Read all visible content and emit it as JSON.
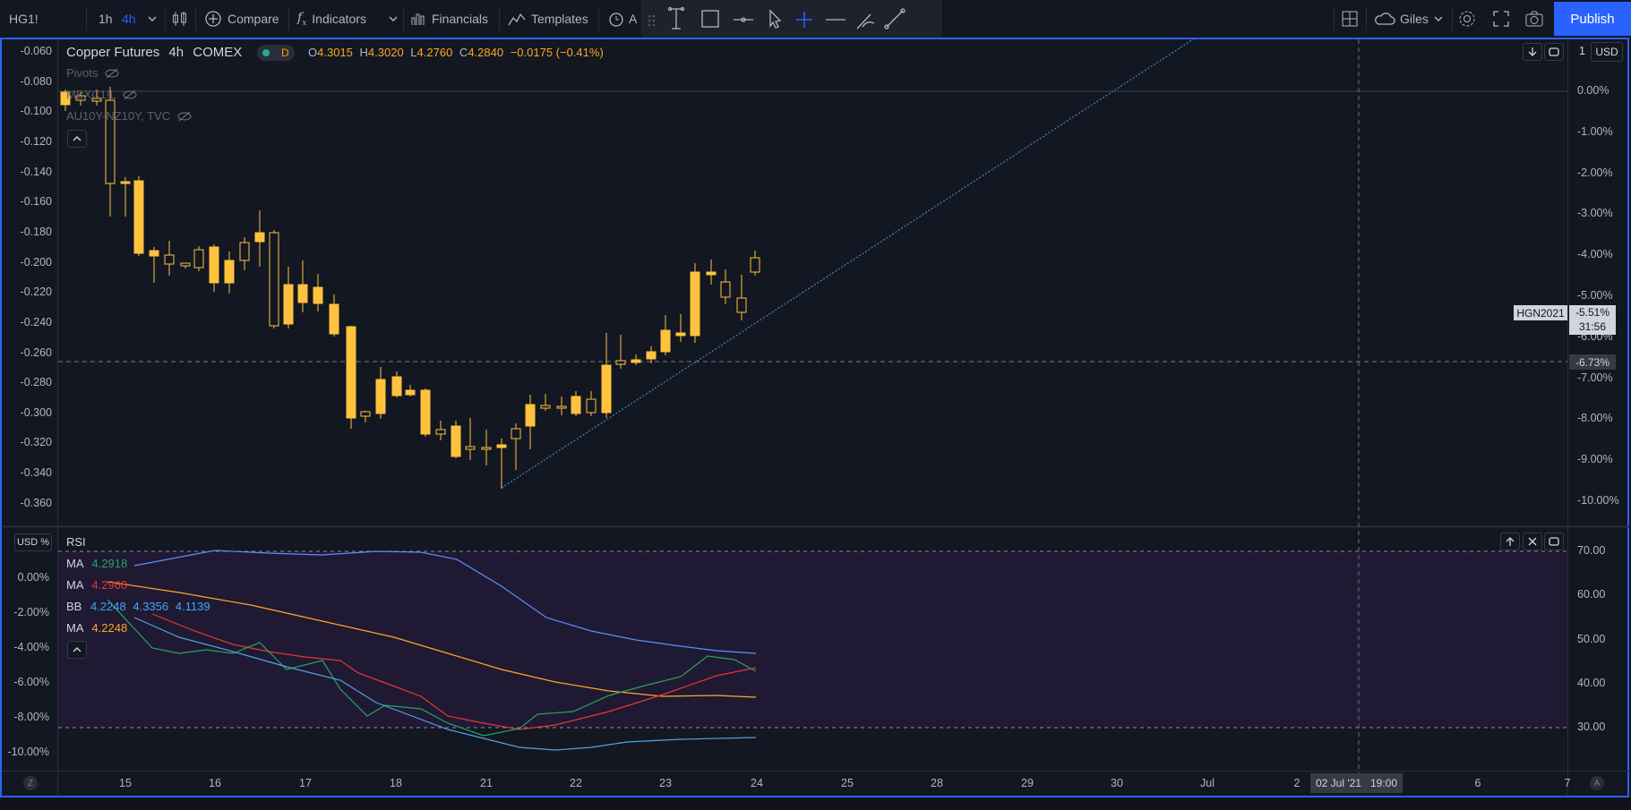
{
  "toolbar": {
    "symbol": "HG1!",
    "interval_1h": "1h",
    "interval_4h": "4h",
    "compare": "Compare",
    "indicators": "Indicators",
    "financials": "Financials",
    "templates": "Templates",
    "alert_partial": "A",
    "user": "Giles",
    "publish": "Publish",
    "accent_color": "#2962ff"
  },
  "legend": {
    "name": "Copper Futures",
    "interval": "4h",
    "exchange": "COMEX",
    "badge": "D",
    "open_label": "O",
    "open": "4.3015",
    "high_label": "H",
    "high": "4.3020",
    "low_label": "L",
    "low": "4.2760",
    "close_label": "C",
    "close": "4.2840",
    "change": "−0.0175 (−0.41%)",
    "studies": [
      {
        "name": "Pivots"
      },
      {
        "name": "MBXC1!L"
      },
      {
        "name": "AU10Y-NZ10Y, TVC"
      }
    ]
  },
  "main_pane": {
    "right_axis_currency": "USD",
    "right_axis_top": "1",
    "left_axis": [
      "-0.060",
      "-0.080",
      "-0.100",
      "-0.120",
      "-0.140",
      "-0.160",
      "-0.180",
      "-0.200",
      "-0.220",
      "-0.240",
      "-0.260",
      "-0.280",
      "-0.300",
      "-0.320",
      "-0.340",
      "-0.360"
    ],
    "right_axis": [
      "0.00%",
      "-1.00%",
      "-2.00%",
      "-3.00%",
      "-4.00%",
      "-5.00%",
      "-6.00%",
      "-7.00%",
      "-8.00%",
      "-9.00%",
      "-10.00%"
    ],
    "symbol_tag": "HGN2021",
    "symbol_value": "-5.51%",
    "countdown": "31:56",
    "crosshair_value": "-6.73%",
    "candle_color": "#ffc23d"
  },
  "rsi_pane": {
    "title": "RSI",
    "left_currency": "USD %",
    "left_axis": [
      "0.00%",
      "-2.00%",
      "-4.00%",
      "-6.00%",
      "-8.00%",
      "-10.00%"
    ],
    "right_axis": [
      "70.00",
      "60.00",
      "50.00",
      "40.00",
      "30.00"
    ],
    "studies": [
      {
        "name": "MA",
        "values": [
          "4.2918"
        ],
        "color": "#26a65b"
      },
      {
        "name": "MA",
        "values": [
          "4.2968"
        ],
        "color": "#e53935"
      },
      {
        "name": "BB",
        "values": [
          "4.2248",
          "4.3356",
          "4.1139"
        ],
        "color": "#42a5f5"
      },
      {
        "name": "MA",
        "values": [
          "4.2248"
        ],
        "color": "#ffa726"
      }
    ]
  },
  "time_axis": {
    "labels": [
      "15",
      "16",
      "17",
      "18",
      "21",
      "22",
      "23",
      "24",
      "25",
      "28",
      "29",
      "30",
      "Jul",
      "2",
      "6",
      "7"
    ],
    "crosshair_label": "02 Jul '21",
    "crosshair_time": "19:00",
    "left_button": "Z",
    "right_button": "A"
  }
}
